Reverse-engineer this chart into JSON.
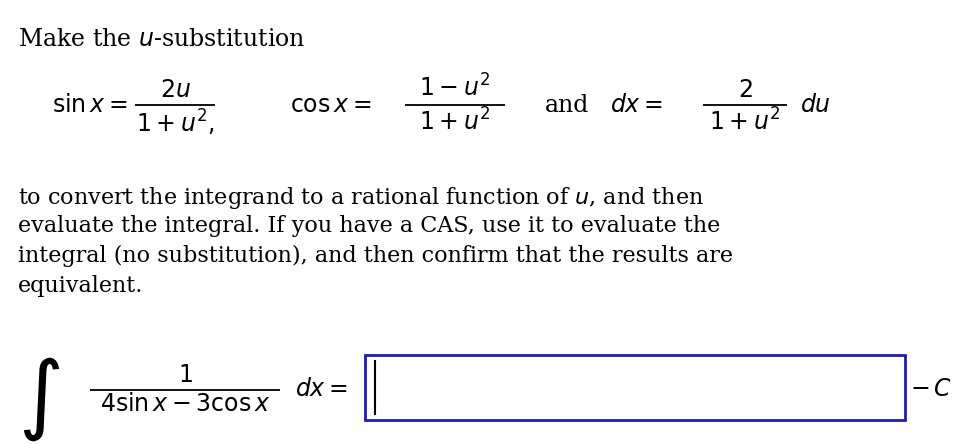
{
  "bg_color": "#ffffff",
  "text_color": "#000000",
  "box_color": "#1a1acc",
  "fig_width": 9.54,
  "fig_height": 4.44,
  "dpi": 100,
  "title": "Make the $u$-substitution",
  "sin_num": "$2u$",
  "sin_den": "$1 + u^2,$",
  "cos_lhs": "$\\cos x =$",
  "cos_num": "$1 - u^2$",
  "cos_den": "$1 + u^2$",
  "and_text": "and",
  "dx_lhs": "$dx =$",
  "dx_num": "$2$",
  "dx_den": "$1 + u^2$",
  "du_text": "$du$",
  "sin_lhs": "$\\sin x =$",
  "paragraph_lines": [
    "to convert the integrand to a rational function of $u$, and then",
    "evaluate the integral. If you have a CAS, use it to evaluate the",
    "integral (no substitution), and then confirm that the results are",
    "equivalent."
  ],
  "int_num": "$1$",
  "int_den": "$4\\sin x - 3\\cos x$",
  "int_dx": "$dx =$",
  "c_text": "$C$",
  "fs_title": 17,
  "fs_body": 16,
  "fs_math": 17,
  "fs_integral": 44
}
